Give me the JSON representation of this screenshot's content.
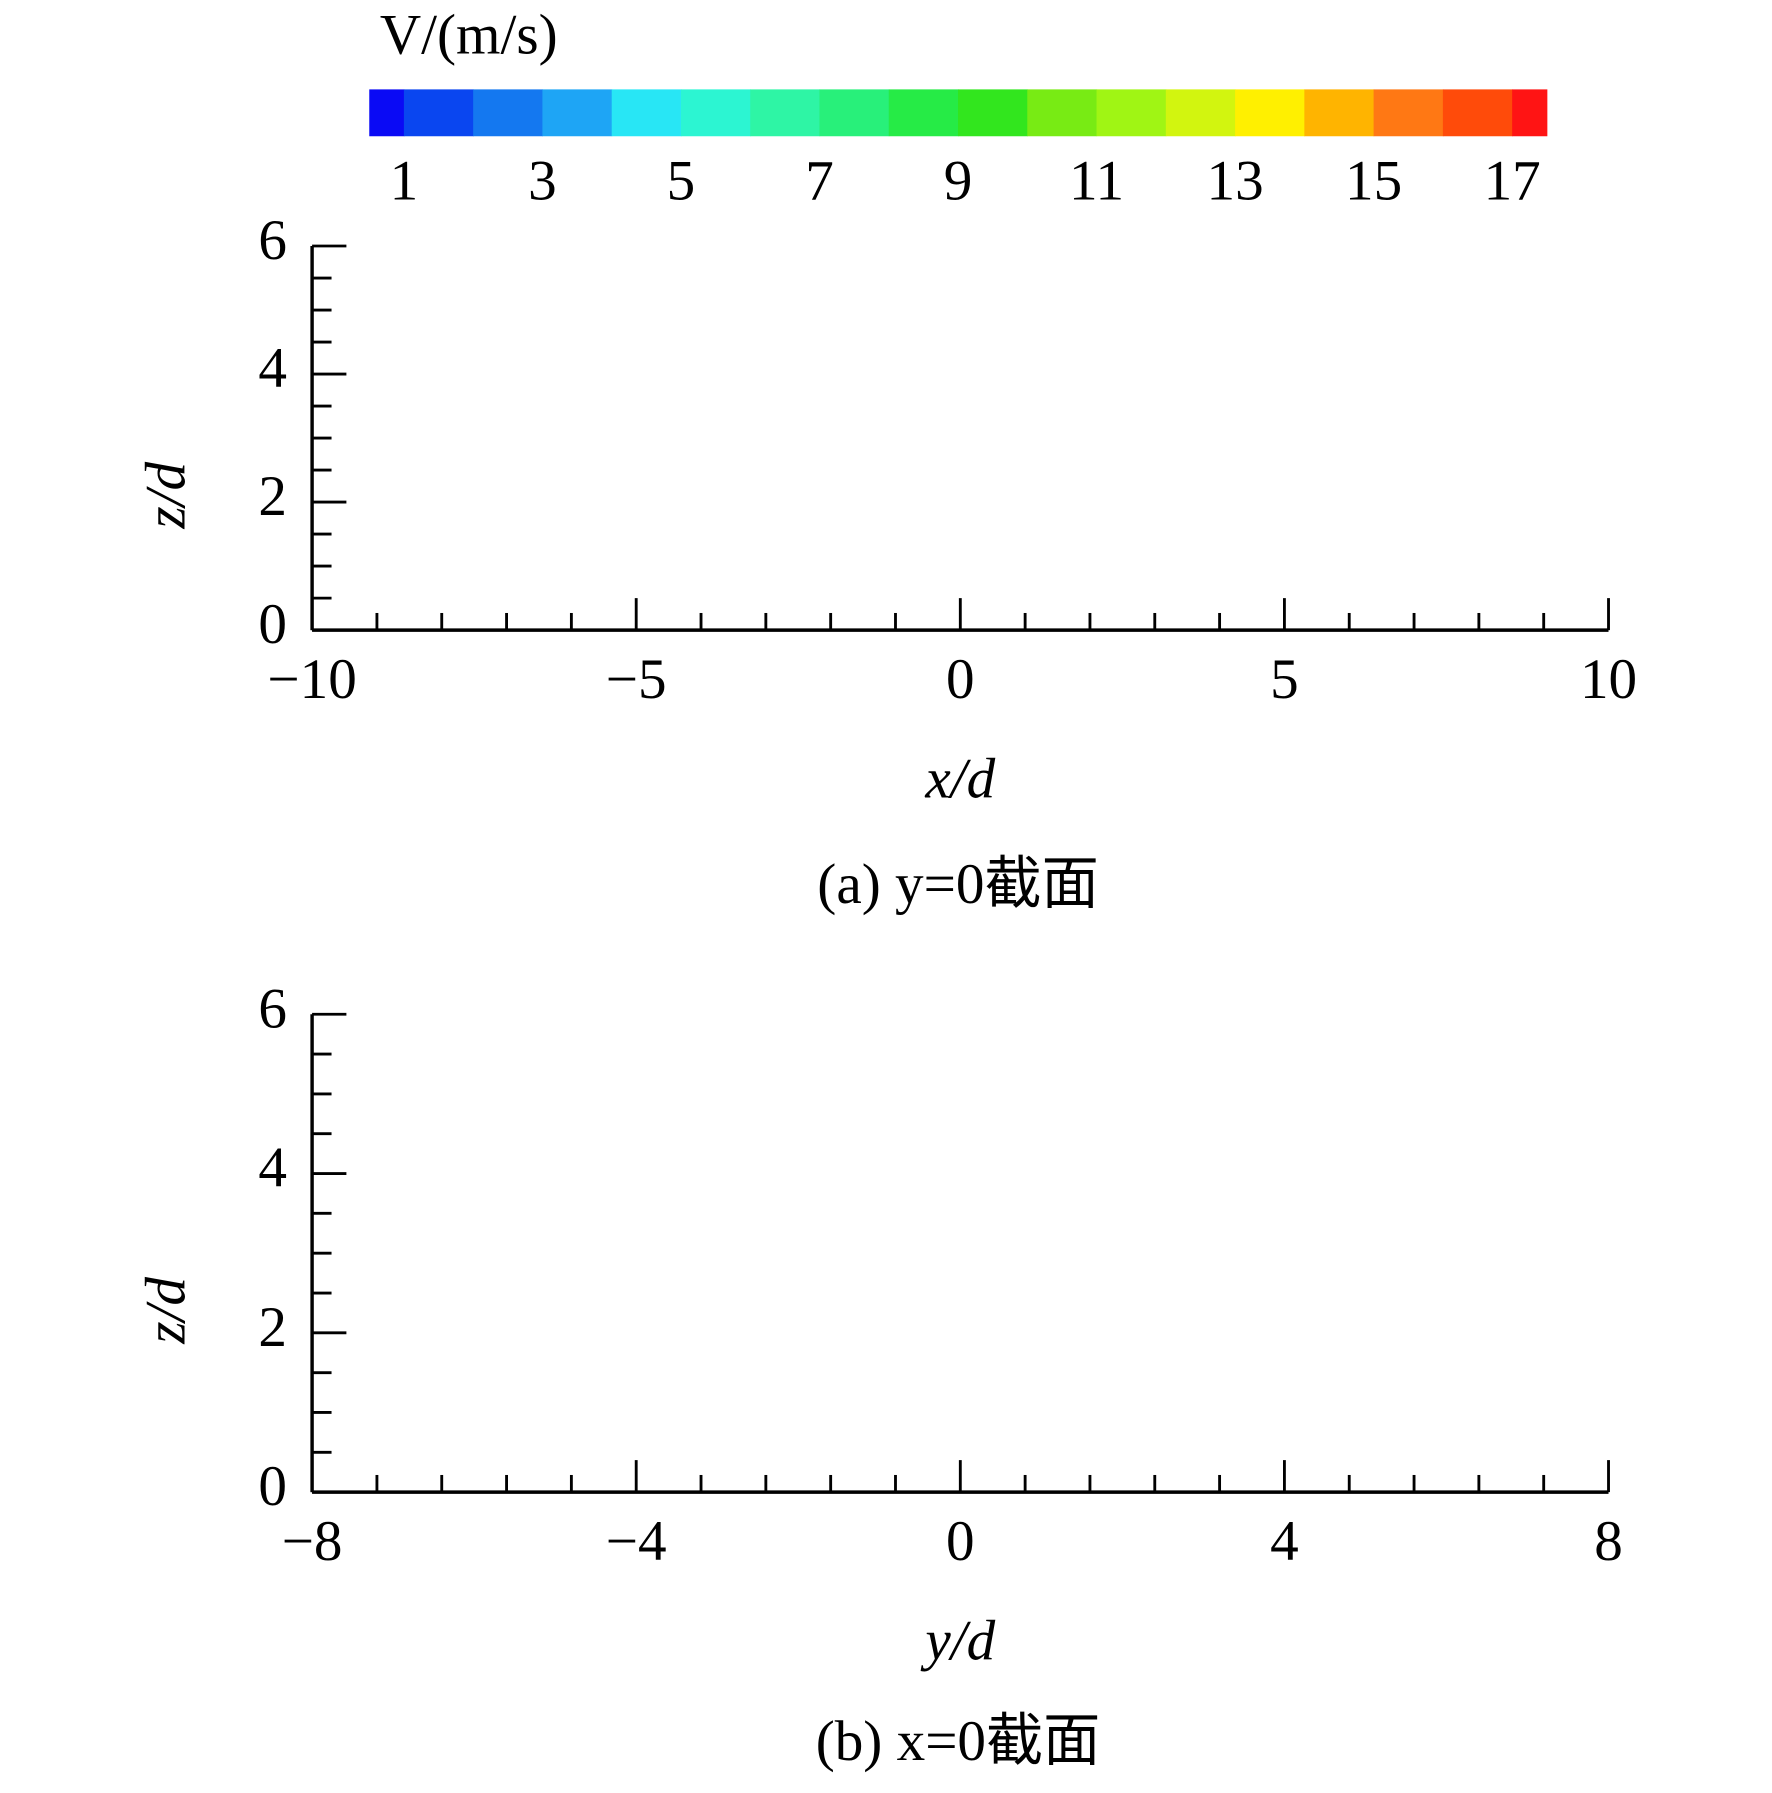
{
  "colorbar": {
    "title": "V/(m/s)",
    "lim": [
      0.5,
      17.5
    ],
    "levels": [
      1,
      2,
      3,
      4,
      5,
      6,
      7,
      8,
      9,
      10,
      11,
      12,
      13,
      14,
      15,
      16,
      17
    ],
    "colors": [
      "#0a0af5",
      "#0a46f0",
      "#1478f0",
      "#1ea5f5",
      "#28e6f5",
      "#2cf5d2",
      "#2ef5a5",
      "#28f07a",
      "#26eb46",
      "#32e61e",
      "#78eb14",
      "#a0f514",
      "#d2f50f",
      "#fff000",
      "#ffb400",
      "#ff7814",
      "#ff4b0a",
      "#ff1414"
    ],
    "ticks": [
      1,
      3,
      5,
      7,
      9,
      11,
      13,
      15,
      17
    ]
  },
  "chart_data": [
    {
      "type": "contour",
      "caption": "(a) y=0截面",
      "xlabel": "x/d",
      "ylabel": "z/d",
      "xlim": [
        -10,
        10
      ],
      "ylim": [
        0,
        6
      ],
      "xticks": [
        {
          "value": -10,
          "label": "−10"
        },
        {
          "value": -5,
          "label": "−5"
        },
        0,
        5,
        10
      ],
      "yticks": [
        0,
        2,
        4,
        6
      ],
      "xminorticks": [
        -9,
        -8,
        -7,
        -6,
        -4,
        -3,
        -2,
        -1,
        1,
        2,
        3,
        4,
        6,
        7,
        8,
        9
      ],
      "yminorticks": [
        0.5,
        1,
        1.5,
        2.5,
        3,
        3.5,
        4.5,
        5,
        5.5
      ]
    },
    {
      "type": "contour",
      "caption": "(b) x=0截面",
      "xlabel": "y/d",
      "ylabel": "z/d",
      "xlim": [
        -8,
        8
      ],
      "ylim": [
        0,
        6
      ],
      "xticks": [
        {
          "value": -8,
          "label": "−8"
        },
        {
          "value": -4,
          "label": "−4"
        },
        0,
        4,
        8
      ],
      "yticks": [
        0,
        2,
        4,
        6
      ],
      "xminorticks": [
        -7.2,
        -6.4,
        -5.6,
        -4.8,
        -3.2,
        -2.4,
        -1.6,
        -0.8,
        0.8,
        1.6,
        2.4,
        3.2,
        4.8,
        5.6,
        6.4,
        7.2
      ],
      "yminorticks": [
        0.5,
        1,
        1.5,
        2.5,
        3,
        3.5,
        4.5,
        5,
        5.5
      ]
    }
  ]
}
